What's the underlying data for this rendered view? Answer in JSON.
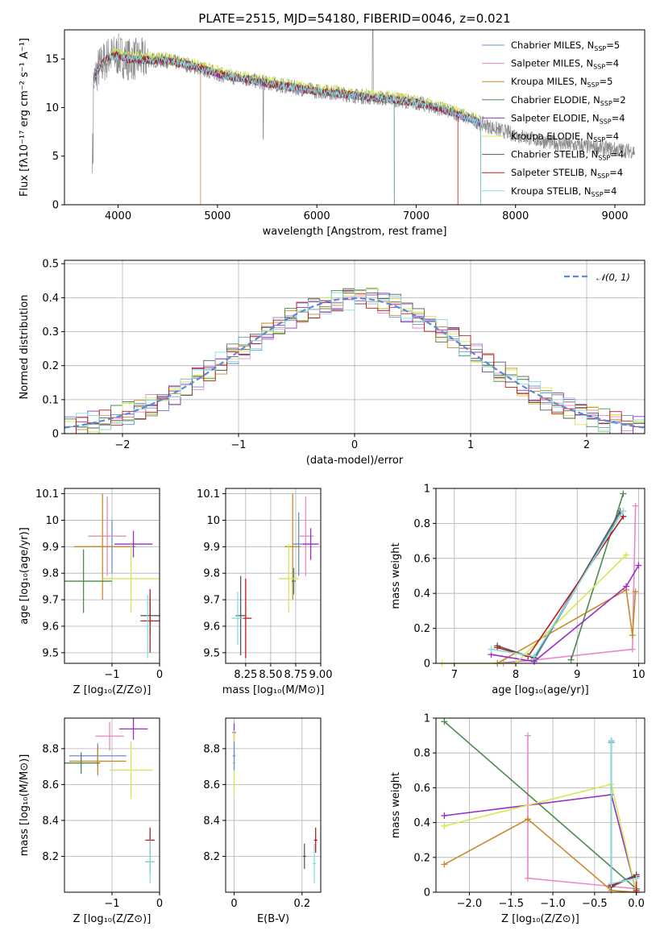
{
  "title": "PLATE=2515, MJD=54180, FIBERID=0046, z=0.021",
  "colors": [
    "#6b8cd6",
    "#e88ac4",
    "#c88a2c",
    "#4e8a4e",
    "#9a2ec4",
    "#d2ea52",
    "#5a5a5a",
    "#b81c1c",
    "#86dede"
  ],
  "series_names": [
    [
      "Chabrier MILES, N",
      "SSP",
      "=5"
    ],
    [
      "Salpeter MILES, N",
      "SSP",
      "=4"
    ],
    [
      "Kroupa MILES, N",
      "SSP",
      "=5"
    ],
    [
      "Chabrier ELODIE, N",
      "SSP",
      "=2"
    ],
    [
      "Salpeter ELODIE, N",
      "SSP",
      "=4"
    ],
    [
      "Kroupa ELODIE, N",
      "SSP",
      "=4"
    ],
    [
      "Chabrier STELIB, N",
      "SSP",
      "=4"
    ],
    [
      "Salpeter STELIB, N",
      "SSP",
      "=4"
    ],
    [
      "Kroupa STELIB, N",
      "SSP",
      "=4"
    ]
  ],
  "chart_data": [
    {
      "type": "line",
      "xlabel": "wavelength [Angstrom, rest frame]",
      "ylabel": "Flux [fλ10⁻¹⁷ erg cm⁻² s⁻¹ A⁻¹]",
      "xlim": [
        3460,
        9300
      ],
      "ylim": [
        0,
        18
      ],
      "xticks": [
        4000,
        5000,
        6000,
        7000,
        8000,
        9000
      ],
      "yticks": [
        0,
        5,
        10,
        15
      ],
      "legend": "top-right",
      "grid": false,
      "continuum": {
        "x": [
          3750,
          3800,
          3900,
          4000,
          4100,
          4300,
          4500,
          4700,
          4900,
          5100,
          5300,
          5500,
          5800,
          6000,
          6200,
          6400,
          6600,
          6800,
          7000,
          7200,
          7400,
          7600,
          7800,
          8000,
          8200,
          8500,
          8800,
          9000,
          9200
        ],
        "y": [
          12.5,
          14.0,
          15.2,
          15.4,
          15.0,
          14.9,
          14.8,
          14.4,
          13.8,
          13.2,
          12.9,
          12.5,
          12.0,
          11.7,
          11.5,
          11.2,
          11.0,
          10.8,
          10.5,
          10.0,
          9.4,
          8.6,
          7.8,
          7.2,
          6.7,
          6.2,
          5.9,
          5.7,
          5.5
        ]
      }
    },
    {
      "type": "bar",
      "xlabel": "(data-model)/error",
      "ylabel": "Normed distribution",
      "xlim": [
        -2.5,
        2.5
      ],
      "ylim": [
        0,
        0.51
      ],
      "xticks": [
        -2,
        -1,
        0,
        1,
        2
      ],
      "yticks": [
        0,
        0.1,
        0.2,
        0.3,
        0.4,
        0.5
      ],
      "bin_width": 0.1,
      "reference_label": "𝒩(0, 1)",
      "legend": "top-right",
      "grid": true
    },
    {
      "type": "scatter",
      "xlabel": "Z [log₁₀(Z/Z⊙)]",
      "ylabel": "age  [log₁₀(age/yr)]",
      "xlim": [
        -2.0,
        0.0
      ],
      "ylim": [
        9.46,
        10.12
      ],
      "xticks": [
        -1,
        0
      ],
      "yticks": [
        9.5,
        9.6,
        9.7,
        9.8,
        9.9,
        10.0,
        10.1
      ],
      "points": [
        [
          -1.0,
          9.9,
          0.5,
          0.1,
          0
        ],
        [
          -1.1,
          9.94,
          0.4,
          0.15,
          1
        ],
        [
          -1.2,
          9.9,
          0.6,
          0.2,
          2
        ],
        [
          -1.6,
          9.77,
          0.6,
          0.12,
          3
        ],
        [
          -0.55,
          9.91,
          0.4,
          0.05,
          4
        ],
        [
          -0.6,
          9.78,
          0.6,
          0.13,
          5
        ],
        [
          -0.2,
          9.64,
          0.2,
          0.07,
          6
        ],
        [
          -0.2,
          9.62,
          0.2,
          0.12,
          7
        ],
        [
          -0.25,
          9.6,
          0.05,
          0.12,
          8
        ]
      ]
    },
    {
      "type": "scatter",
      "xlabel": "mass [log₁₀(M/M⊙)]",
      "ylabel": "",
      "xlim": [
        8.05,
        9.0
      ],
      "ylim": [
        9.46,
        10.12
      ],
      "xticks": [
        8.25,
        8.5,
        8.75,
        9.0
      ],
      "xtick_labels": [
        "8.25",
        "8.50",
        "8.75",
        "9.00"
      ],
      "yticks": [
        9.5,
        9.6,
        9.7,
        9.8,
        9.9,
        10.0,
        10.1
      ],
      "points": [
        [
          8.78,
          9.91,
          0.06,
          0.12,
          0
        ],
        [
          8.85,
          9.94,
          0.08,
          0.15,
          1
        ],
        [
          8.72,
          9.9,
          0.08,
          0.2,
          2
        ],
        [
          8.73,
          9.77,
          0.02,
          0.05,
          3
        ],
        [
          8.9,
          9.91,
          0.08,
          0.06,
          4
        ],
        [
          8.68,
          9.78,
          0.1,
          0.13,
          5
        ],
        [
          8.2,
          9.64,
          0.05,
          0.15,
          6
        ],
        [
          8.25,
          9.63,
          0.06,
          0.15,
          7
        ],
        [
          8.17,
          9.63,
          0.06,
          0.1,
          8
        ]
      ]
    },
    {
      "type": "line",
      "xlabel": "age  [log₁₀(age/yr)]",
      "ylabel": "mass weight",
      "xlim": [
        6.7,
        10.1
      ],
      "ylim": [
        0,
        1.0
      ],
      "xticks": [
        7,
        8,
        9,
        10
      ],
      "yticks": [
        0,
        0.2,
        0.4,
        0.6,
        0.8,
        1.0
      ],
      "grid": true,
      "series": [
        {
          "color": 0,
          "x": [
            7.7,
            8.3,
            9.7
          ],
          "y": [
            0.0,
            0.02,
            0.86
          ]
        },
        {
          "color": 1,
          "x": [
            7.8,
            9.9,
            9.95
          ],
          "y": [
            0.0,
            0.08,
            0.9
          ]
        },
        {
          "color": 2,
          "x": [
            7.7,
            9.8,
            9.9,
            9.95
          ],
          "y": [
            0.0,
            0.42,
            0.16,
            0.41
          ]
        },
        {
          "color": 3,
          "x": [
            8.9,
            9.75
          ],
          "y": [
            0.02,
            0.97
          ]
        },
        {
          "color": 4,
          "x": [
            7.6,
            8.3,
            9.8,
            10.0
          ],
          "y": [
            0.05,
            0.01,
            0.44,
            0.56
          ]
        },
        {
          "color": 5,
          "x": [
            6.8,
            8.0,
            9.8
          ],
          "y": [
            0.0,
            0.0,
            0.62
          ]
        },
        {
          "color": 6,
          "x": [
            7.7,
            8.3,
            9.7
          ],
          "y": [
            0.1,
            0.03,
            0.87
          ]
        },
        {
          "color": 7,
          "x": [
            7.7,
            8.2,
            9.75
          ],
          "y": [
            0.09,
            0.04,
            0.84
          ]
        },
        {
          "color": 8,
          "x": [
            7.6,
            8.3,
            9.75
          ],
          "y": [
            0.08,
            0.04,
            0.87
          ]
        }
      ]
    },
    {
      "type": "scatter",
      "xlabel": "Z [log₁₀(Z/Z⊙)]",
      "ylabel": "mass [log₁₀(M/M⊙)]",
      "xlim": [
        -2.0,
        0.0
      ],
      "ylim": [
        8.0,
        8.97
      ],
      "xticks": [
        -1,
        0
      ],
      "yticks": [
        8.2,
        8.4,
        8.6,
        8.8
      ],
      "points": [
        [
          -1.3,
          8.76,
          0.6,
          0.07,
          0
        ],
        [
          -1.05,
          8.87,
          0.3,
          0.08,
          1
        ],
        [
          -1.3,
          8.73,
          0.6,
          0.08,
          2
        ],
        [
          -1.65,
          8.72,
          0.4,
          0.06,
          3
        ],
        [
          -0.55,
          8.91,
          0.3,
          0.06,
          4
        ],
        [
          -0.6,
          8.68,
          0.45,
          0.16,
          5
        ],
        [
          -0.2,
          8.17,
          0.1,
          0.06,
          6
        ],
        [
          -0.2,
          8.29,
          0.1,
          0.07,
          7
        ],
        [
          -0.2,
          8.17,
          0.1,
          0.12,
          8
        ]
      ]
    },
    {
      "type": "scatter",
      "xlabel": "E(B-V)",
      "ylabel": "",
      "xlim": [
        -0.025,
        0.255
      ],
      "ylim": [
        8.0,
        8.97
      ],
      "xticks": [
        0.0,
        0.2
      ],
      "yticks": [
        8.2,
        8.4,
        8.6,
        8.8
      ],
      "points": [
        [
          0.0,
          8.89,
          0.005,
          0.05,
          4
        ],
        [
          0.0,
          8.72,
          0.005,
          0.18,
          5
        ],
        [
          0.0,
          8.76,
          0.004,
          0.08,
          0
        ],
        [
          0.207,
          8.2,
          0.005,
          0.07,
          6
        ],
        [
          0.24,
          8.29,
          0.005,
          0.07,
          7
        ],
        [
          0.236,
          8.16,
          0.005,
          0.11,
          8
        ]
      ]
    },
    {
      "type": "line",
      "xlabel": "Z [log₁₀(Z/Z⊙)]",
      "ylabel": "mass weight",
      "xlim": [
        -2.4,
        0.1
      ],
      "ylim": [
        0,
        1.0
      ],
      "xticks": [
        -2.0,
        -1.5,
        -1.0,
        -0.5,
        0.0
      ],
      "xtick_labels": [
        "−2.0",
        "−1.5",
        "−1.0",
        "−0.5",
        "0.0"
      ],
      "yticks": [
        0,
        0.2,
        0.4,
        0.6,
        0.8,
        1.0
      ],
      "grid": true,
      "series": [
        {
          "color": 0,
          "x": [
            -0.3,
            -0.3,
            0.0
          ],
          "y": [
            0.86,
            0.04,
            0.1
          ]
        },
        {
          "color": 1,
          "x": [
            -1.3,
            -1.3,
            0.0
          ],
          "y": [
            0.9,
            0.08,
            0.02
          ]
        },
        {
          "color": 2,
          "x": [
            -2.3,
            -1.3,
            -0.3,
            0.0
          ],
          "y": [
            0.16,
            0.42,
            0.01,
            0.0
          ]
        },
        {
          "color": 3,
          "x": [
            -2.3,
            0.0
          ],
          "y": [
            0.98,
            0.02
          ]
        },
        {
          "color": 4,
          "x": [
            -2.3,
            -0.3,
            0.0
          ],
          "y": [
            0.44,
            0.56,
            0.0
          ]
        },
        {
          "color": 5,
          "x": [
            -2.3,
            -0.3,
            0.0
          ],
          "y": [
            0.38,
            0.62,
            0.0
          ]
        },
        {
          "color": 6,
          "x": [
            -0.3,
            -0.3,
            0.0
          ],
          "y": [
            0.87,
            0.03,
            0.1
          ]
        },
        {
          "color": 7,
          "x": [
            -0.3,
            0.0,
            0.0
          ],
          "y": [
            0.04,
            0.09,
            0.01
          ]
        },
        {
          "color": 8,
          "x": [
            -0.3,
            -0.3,
            0.0
          ],
          "y": [
            0.87,
            0.05,
            0.08
          ]
        }
      ]
    }
  ]
}
